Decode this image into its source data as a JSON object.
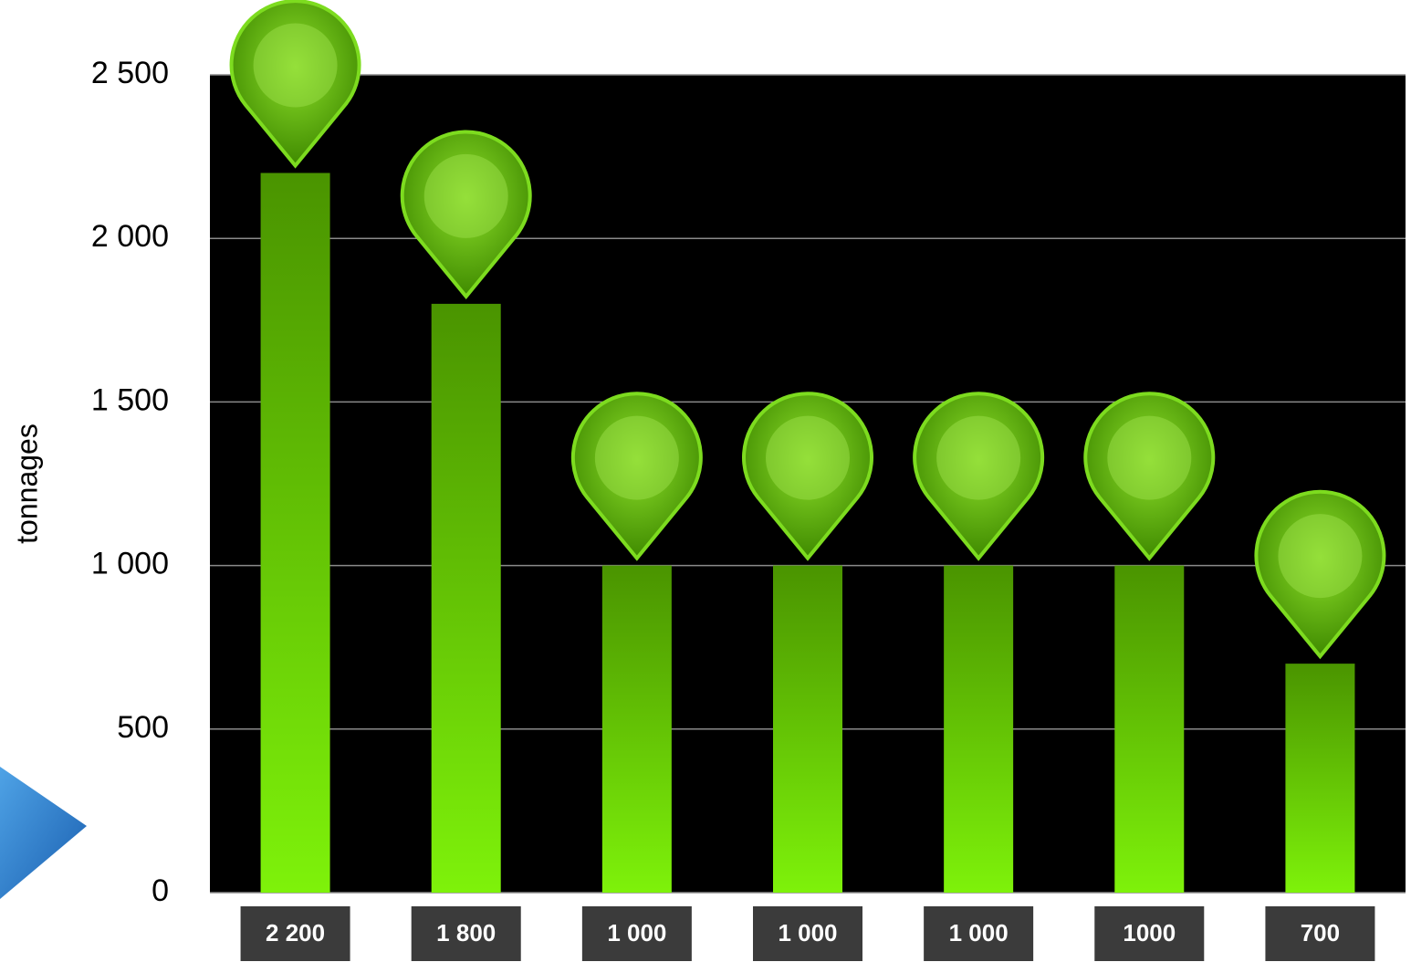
{
  "chart_data": {
    "type": "bar",
    "y_label": "tonnages",
    "categories": [
      null,
      null,
      null,
      null,
      null,
      null,
      null
    ],
    "values": [
      2200,
      1800,
      1000,
      1000,
      1000,
      1000,
      700
    ],
    "value_labels": [
      "2 200",
      "1 800",
      "1 000",
      "1 000",
      "1 000",
      "1000",
      "700"
    ],
    "color": "#6fdc08",
    "ylim": [
      0,
      2500
    ],
    "yticks": [
      0,
      500,
      {
        "value": 1000,
        "label": "1 000"
      },
      {
        "value": 1500,
        "label": "1 500"
      },
      {
        "value": 2000,
        "label": "2 000"
      },
      {
        "value": 2500,
        "label": "2 500"
      }
    ],
    "grid": true
  }
}
